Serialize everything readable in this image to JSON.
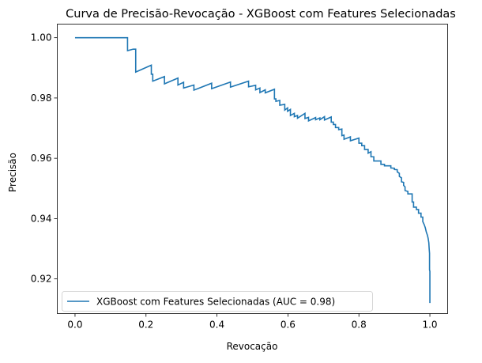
{
  "chart_data": {
    "type": "line",
    "title": "Curva de Precisão-Revocação - XGBoost com Features Selecionadas",
    "xlabel": "Revocação",
    "ylabel": "Precisão",
    "xlim": [
      -0.05,
      1.05
    ],
    "ylim": [
      0.9085,
      1.0045
    ],
    "xticks": [
      {
        "value": 0.0,
        "label": "0.0"
      },
      {
        "value": 0.2,
        "label": "0.2"
      },
      {
        "value": 0.4,
        "label": "0.4"
      },
      {
        "value": 0.6,
        "label": "0.6"
      },
      {
        "value": 0.8,
        "label": "0.8"
      },
      {
        "value": 1.0,
        "label": "1.0"
      }
    ],
    "yticks": [
      {
        "value": 0.92,
        "label": "0.92"
      },
      {
        "value": 0.94,
        "label": "0.94"
      },
      {
        "value": 0.96,
        "label": "0.96"
      },
      {
        "value": 0.98,
        "label": "0.98"
      },
      {
        "value": 1.0,
        "label": "1.00"
      }
    ],
    "grid": false,
    "legend_position": "lower-left",
    "series": [
      {
        "name": "XGBoost com Features Selecionadas (AUC = 0.98)",
        "color": "#1f77b4",
        "step": true,
        "points": [
          [
            0.0,
            1.0
          ],
          [
            0.148,
            1.0
          ],
          [
            0.148,
            0.9957
          ],
          [
            0.164,
            0.9962
          ],
          [
            0.171,
            0.9962
          ],
          [
            0.171,
            0.9886
          ],
          [
            0.215,
            0.9909
          ],
          [
            0.215,
            0.9879
          ],
          [
            0.219,
            0.9879
          ],
          [
            0.219,
            0.9856
          ],
          [
            0.252,
            0.9871
          ],
          [
            0.252,
            0.9847
          ],
          [
            0.29,
            0.9866
          ],
          [
            0.29,
            0.9843
          ],
          [
            0.306,
            0.9852
          ],
          [
            0.306,
            0.9833
          ],
          [
            0.335,
            0.9843
          ],
          [
            0.335,
            0.9826
          ],
          [
            0.385,
            0.9849
          ],
          [
            0.385,
            0.9831
          ],
          [
            0.438,
            0.9853
          ],
          [
            0.438,
            0.9836
          ],
          [
            0.489,
            0.9856
          ],
          [
            0.489,
            0.9837
          ],
          [
            0.509,
            0.9842
          ],
          [
            0.509,
            0.9827
          ],
          [
            0.521,
            0.9833
          ],
          [
            0.521,
            0.9818
          ],
          [
            0.536,
            0.9827
          ],
          [
            0.536,
            0.9817
          ],
          [
            0.562,
            0.9829
          ],
          [
            0.562,
            0.9797
          ],
          [
            0.566,
            0.9797
          ],
          [
            0.566,
            0.9789
          ],
          [
            0.577,
            0.9792
          ],
          [
            0.577,
            0.9776
          ],
          [
            0.591,
            0.9779
          ],
          [
            0.591,
            0.976
          ],
          [
            0.599,
            0.9767
          ],
          [
            0.599,
            0.9756
          ],
          [
            0.607,
            0.9762
          ],
          [
            0.607,
            0.9742
          ],
          [
            0.618,
            0.9749
          ],
          [
            0.618,
            0.9738
          ],
          [
            0.627,
            0.9742
          ],
          [
            0.627,
            0.9733
          ],
          [
            0.648,
            0.9749
          ],
          [
            0.648,
            0.9732
          ],
          [
            0.658,
            0.9736
          ],
          [
            0.658,
            0.9724
          ],
          [
            0.678,
            0.9735
          ],
          [
            0.678,
            0.9728
          ],
          [
            0.69,
            0.9734
          ],
          [
            0.69,
            0.9728
          ],
          [
            0.703,
            0.9738
          ],
          [
            0.703,
            0.9727
          ],
          [
            0.722,
            0.9737
          ],
          [
            0.722,
            0.972
          ],
          [
            0.728,
            0.972
          ],
          [
            0.728,
            0.9712
          ],
          [
            0.734,
            0.9712
          ],
          [
            0.734,
            0.9702
          ],
          [
            0.743,
            0.9702
          ],
          [
            0.743,
            0.9695
          ],
          [
            0.752,
            0.9697
          ],
          [
            0.752,
            0.9675
          ],
          [
            0.758,
            0.9677
          ],
          [
            0.758,
            0.9663
          ],
          [
            0.776,
            0.9671
          ],
          [
            0.776,
            0.9658
          ],
          [
            0.8,
            0.9667
          ],
          [
            0.8,
            0.965
          ],
          [
            0.808,
            0.965
          ],
          [
            0.808,
            0.9642
          ],
          [
            0.816,
            0.9642
          ],
          [
            0.816,
            0.9629
          ],
          [
            0.826,
            0.9629
          ],
          [
            0.826,
            0.9617
          ],
          [
            0.834,
            0.9622
          ],
          [
            0.834,
            0.9605
          ],
          [
            0.842,
            0.9605
          ],
          [
            0.842,
            0.9591
          ],
          [
            0.862,
            0.9591
          ],
          [
            0.862,
            0.958
          ],
          [
            0.872,
            0.958
          ],
          [
            0.872,
            0.9575
          ],
          [
            0.89,
            0.9575
          ],
          [
            0.89,
            0.9568
          ],
          [
            0.9,
            0.9567
          ],
          [
            0.9,
            0.9563
          ],
          [
            0.908,
            0.9562
          ],
          [
            0.908,
            0.9555
          ],
          [
            0.914,
            0.955
          ],
          [
            0.914,
            0.954
          ],
          [
            0.92,
            0.9535
          ],
          [
            0.92,
            0.9522
          ],
          [
            0.926,
            0.952
          ],
          [
            0.926,
            0.951
          ],
          [
            0.93,
            0.9505
          ],
          [
            0.93,
            0.9493
          ],
          [
            0.938,
            0.949
          ],
          [
            0.938,
            0.9482
          ],
          [
            0.95,
            0.9482
          ],
          [
            0.95,
            0.9455
          ],
          [
            0.954,
            0.9455
          ],
          [
            0.954,
            0.9438
          ],
          [
            0.962,
            0.9438
          ],
          [
            0.962,
            0.943
          ],
          [
            0.968,
            0.943
          ],
          [
            0.968,
            0.9418
          ],
          [
            0.975,
            0.9418
          ],
          [
            0.975,
            0.9405
          ],
          [
            0.98,
            0.9405
          ],
          [
            0.98,
            0.939
          ],
          [
            0.984,
            0.938
          ],
          [
            0.987,
            0.937
          ],
          [
            0.99,
            0.9355
          ],
          [
            0.993,
            0.9345
          ],
          [
            0.995,
            0.9335
          ],
          [
            0.997,
            0.932
          ],
          [
            0.998,
            0.93
          ],
          [
            0.999,
            0.9285
          ],
          [
            0.999,
            0.923
          ],
          [
            1.0,
            0.9225
          ],
          [
            1.0,
            0.912
          ]
        ]
      }
    ]
  }
}
